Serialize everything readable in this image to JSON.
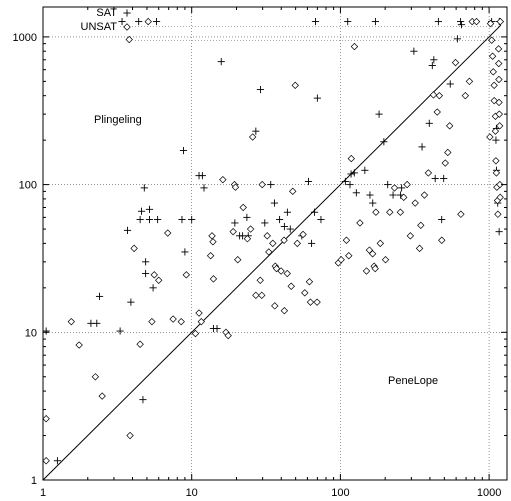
{
  "chart_data": {
    "type": "scatter",
    "title": "",
    "xlabel": "",
    "ylabel": "",
    "scale": "log-log",
    "xlim": [
      1,
      1200
    ],
    "ylim": [
      1,
      1200
    ],
    "grid": true,
    "legend_placement": "top-left",
    "x_ticks": [
      "1",
      "10",
      "100",
      "1000"
    ],
    "y_ticks": [
      "1",
      "10",
      "100",
      "1000"
    ],
    "reference_line": "y = x",
    "region_labels": {
      "upper_left": "Plingeling",
      "lower_right": "PeneLope"
    },
    "series": [
      {
        "name": "SAT",
        "marker": "plus",
        "points": [
          [
            1.25,
            1.35
          ],
          [
            1.05,
            10.2
          ],
          [
            2.1,
            11.5
          ],
          [
            2.3,
            11.5
          ],
          [
            2.4,
            17.5
          ],
          [
            3.3,
            10.2
          ],
          [
            3.7,
            49
          ],
          [
            3.9,
            16
          ],
          [
            4.5,
            58
          ],
          [
            4.6,
            66
          ],
          [
            4.8,
            95
          ],
          [
            4.9,
            25
          ],
          [
            4.9,
            30
          ],
          [
            5.2,
            68
          ],
          [
            5.2,
            58
          ],
          [
            5.5,
            20
          ],
          [
            5.9,
            58
          ],
          [
            4.7,
            3.5
          ],
          [
            8.8,
            170
          ],
          [
            8.6,
            58
          ],
          [
            9.0,
            35
          ],
          [
            10,
            58
          ],
          [
            11.2,
            115
          ],
          [
            11.8,
            115
          ],
          [
            12.1,
            95
          ],
          [
            14,
            10.6
          ],
          [
            14.8,
            10.6
          ],
          [
            15.8,
            680
          ],
          [
            19.5,
            55
          ],
          [
            21,
            45
          ],
          [
            22,
            45
          ],
          [
            24,
            45
          ],
          [
            23.5,
            60
          ],
          [
            27,
            230
          ],
          [
            29,
            440
          ],
          [
            31,
            55
          ],
          [
            34,
            100
          ],
          [
            36,
            75
          ],
          [
            39,
            58
          ],
          [
            42,
            52
          ],
          [
            44,
            65
          ],
          [
            46,
            50
          ],
          [
            55,
            45
          ],
          [
            61,
            105
          ],
          [
            64,
            40
          ],
          [
            67,
            65
          ],
          [
            70,
            385
          ],
          [
            74,
            58
          ],
          [
            108,
            105
          ],
          [
            116,
            100
          ],
          [
            118,
            118
          ],
          [
            124,
            120
          ],
          [
            128,
            88
          ],
          [
            146,
            125
          ],
          [
            158,
            85
          ],
          [
            165,
            75
          ],
          [
            182,
            300
          ],
          [
            196,
            195
          ],
          [
            208,
            100
          ],
          [
            226,
            85
          ],
          [
            254,
            85
          ],
          [
            258,
            95
          ],
          [
            312,
            800
          ],
          [
            354,
            180
          ],
          [
            396,
            260
          ],
          [
            415,
            640
          ],
          [
            425,
            700
          ],
          [
            434,
            110
          ],
          [
            456,
            1270
          ],
          [
            480,
            58
          ],
          [
            495,
            110
          ],
          [
            548,
            480
          ],
          [
            612,
            970
          ],
          [
            643,
            1270
          ],
          [
            652,
            1210
          ],
          [
            1112,
            200
          ],
          [
            1122,
            125
          ],
          [
            1143,
            75
          ],
          [
            1168,
            48
          ],
          [
            1170,
            1270
          ],
          [
            3.4,
            1270
          ],
          [
            5.8,
            1270
          ],
          [
            4.4,
            1270
          ],
          [
            68,
            1270
          ],
          [
            112,
            1270
          ],
          [
            172,
            1270
          ],
          [
            1040,
            1270
          ],
          [
            1120,
            240
          ]
        ]
      },
      {
        "name": "UNSAT",
        "marker": "diamond",
        "points": [
          [
            1.05,
            1.35
          ],
          [
            1.05,
            2.6
          ],
          [
            1.55,
            11.8
          ],
          [
            1.75,
            8.2
          ],
          [
            2.25,
            5.0
          ],
          [
            2.5,
            3.7
          ],
          [
            3.85,
            2.0
          ],
          [
            4.5,
            8.3
          ],
          [
            4.1,
            37
          ],
          [
            5.4,
            11.8
          ],
          [
            5.6,
            24.5
          ],
          [
            6.0,
            22.5
          ],
          [
            6.9,
            47
          ],
          [
            7.5,
            12.3
          ],
          [
            8.5,
            11.8
          ],
          [
            9.2,
            24.5
          ],
          [
            10.6,
            9.8
          ],
          [
            11.2,
            13.5
          ],
          [
            11.6,
            11.8
          ],
          [
            13.4,
            33
          ],
          [
            13.7,
            45
          ],
          [
            13.9,
            41
          ],
          [
            14.0,
            23
          ],
          [
            16.2,
            108
          ],
          [
            17.0,
            10.0
          ],
          [
            17.6,
            9.5
          ],
          [
            19.0,
            48
          ],
          [
            19.4,
            100
          ],
          [
            19.7,
            96
          ],
          [
            20.4,
            31
          ],
          [
            22.2,
            70
          ],
          [
            23.7,
            43
          ],
          [
            24.9,
            50
          ],
          [
            25.7,
            210
          ],
          [
            27.0,
            17.8
          ],
          [
            28.9,
            22.5
          ],
          [
            29.6,
            17.8
          ],
          [
            29.8,
            100
          ],
          [
            32.2,
            45
          ],
          [
            33.0,
            35
          ],
          [
            35.1,
            40
          ],
          [
            36.2,
            15.1
          ],
          [
            36.5,
            28
          ],
          [
            37.2,
            27
          ],
          [
            39.9,
            26
          ],
          [
            41.8,
            42
          ],
          [
            42.0,
            14.0
          ],
          [
            43.9,
            25
          ],
          [
            46.7,
            20.5
          ],
          [
            47.8,
            90
          ],
          [
            49.7,
            470
          ],
          [
            51.3,
            40
          ],
          [
            56.1,
            46
          ],
          [
            57.6,
            18.5
          ],
          [
            61.9,
            22
          ],
          [
            62.9,
            16
          ],
          [
            69.7,
            16
          ],
          [
            96.8,
            29.5
          ],
          [
            101.2,
            31
          ],
          [
            109.8,
            42
          ],
          [
            113.9,
            33
          ],
          [
            118.4,
            150
          ],
          [
            124.3,
            860
          ],
          [
            135.3,
            55
          ],
          [
            149.8,
            26
          ],
          [
            156.7,
            36
          ],
          [
            164.7,
            34
          ],
          [
            168.6,
            28
          ],
          [
            171.4,
            27
          ],
          [
            173.3,
            65
          ],
          [
            185.6,
            40
          ],
          [
            201.1,
            31
          ],
          [
            214.8,
            65
          ],
          [
            231.2,
            95
          ],
          [
            253.2,
            65
          ],
          [
            266.5,
            82
          ],
          [
            281.0,
            100
          ],
          [
            295.5,
            45
          ],
          [
            318.5,
            75
          ],
          [
            340.8,
            37
          ],
          [
            347.3,
            53
          ],
          [
            367.3,
            85
          ],
          [
            390.4,
            120
          ],
          [
            422.3,
            405
          ],
          [
            447.8,
            310
          ],
          [
            462.9,
            400
          ],
          [
            480.5,
            42
          ],
          [
            507.3,
            140
          ],
          [
            527.6,
            165
          ],
          [
            543.0,
            250
          ],
          [
            594.7,
            670
          ],
          [
            646.2,
            63
          ],
          [
            692.2,
            400
          ],
          [
            737.5,
            500
          ],
          [
            769.5,
            1270
          ],
          [
            822.7,
            1270
          ],
          [
            1011.7,
            210
          ],
          [
            1022.5,
            1230
          ],
          [
            1041.2,
            950
          ],
          [
            1055.8,
            740
          ],
          [
            1066.4,
            580
          ],
          [
            1081.2,
            470
          ],
          [
            1082.0,
            370
          ],
          [
            1103.0,
            290
          ],
          [
            1102.9,
            230
          ],
          [
            1111.0,
            145
          ],
          [
            1119.7,
            120
          ],
          [
            1127.3,
            96
          ],
          [
            1138.8,
            78
          ],
          [
            1145.5,
            63
          ],
          [
            1158.0,
            830
          ],
          [
            1160.7,
            660
          ],
          [
            1164.0,
            515
          ],
          [
            1165.8,
            360
          ],
          [
            1171.3,
            300
          ],
          [
            1178.1,
            250
          ],
          [
            1181.4,
            100
          ],
          [
            1187.0,
            82
          ],
          [
            1190.0,
            1270
          ],
          [
            3.8,
            960
          ],
          [
            5.1,
            1270
          ]
        ]
      }
    ]
  }
}
